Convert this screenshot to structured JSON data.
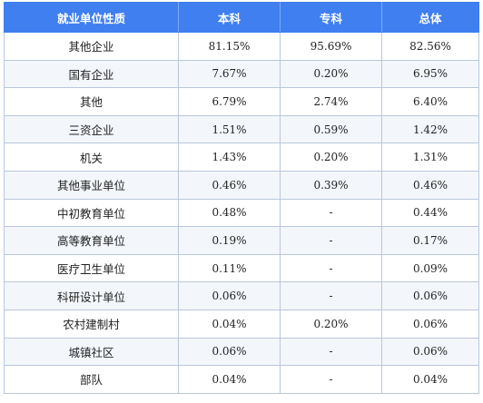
{
  "table": {
    "headers": [
      "就业单位性质",
      "本科",
      "专科",
      "总体"
    ],
    "rows": [
      {
        "name": "其他企业",
        "benke": "81.15%",
        "zhuanke": "95.69%",
        "zongti": "82.56%"
      },
      {
        "name": "国有企业",
        "benke": "7.67%",
        "zhuanke": "0.20%",
        "zongti": "6.95%"
      },
      {
        "name": "其他",
        "benke": "6.79%",
        "zhuanke": "2.74%",
        "zongti": "6.40%"
      },
      {
        "name": "三资企业",
        "benke": "1.51%",
        "zhuanke": "0.59%",
        "zongti": "1.42%"
      },
      {
        "name": "机关",
        "benke": "1.43%",
        "zhuanke": "0.20%",
        "zongti": "1.31%"
      },
      {
        "name": "其他事业单位",
        "benke": "0.46%",
        "zhuanke": "0.39%",
        "zongti": "0.46%"
      },
      {
        "name": "中初教育单位",
        "benke": "0.48%",
        "zhuanke": "-",
        "zongti": "0.44%"
      },
      {
        "name": "高等教育单位",
        "benke": "0.19%",
        "zhuanke": "-",
        "zongti": "0.17%"
      },
      {
        "name": "医疗卫生单位",
        "benke": "0.11%",
        "zhuanke": "-",
        "zongti": "0.09%"
      },
      {
        "name": "科研设计单位",
        "benke": "0.06%",
        "zhuanke": "-",
        "zongti": "0.06%"
      },
      {
        "name": "农村建制村",
        "benke": "0.04%",
        "zhuanke": "0.20%",
        "zongti": "0.06%"
      },
      {
        "name": "城镇社区",
        "benke": "0.06%",
        "zhuanke": "-",
        "zongti": "0.06%"
      },
      {
        "name": "部队",
        "benke": "0.04%",
        "zhuanke": "-",
        "zongti": "0.04%"
      }
    ]
  },
  "colors": {
    "header_bg": "#3f7ff0",
    "header_text": "#ffffff",
    "border": "#b9c7dc",
    "alt_row_bg": "#f3f6fb"
  }
}
